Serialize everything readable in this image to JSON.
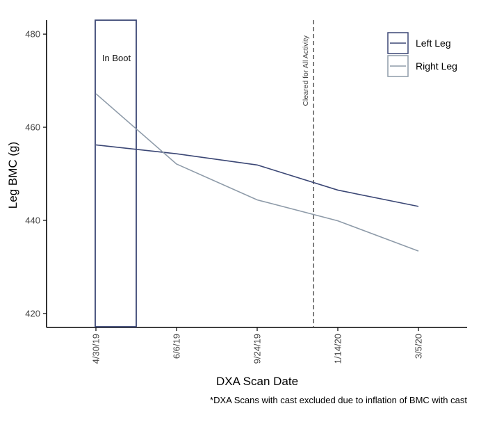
{
  "chart_data": {
    "type": "line",
    "xlabel": "DXA Scan Date",
    "ylabel": "Leg BMC (g)",
    "categories": [
      "4/30/19",
      "6/6/19",
      "9/24/19",
      "1/14/20",
      "3/5/20"
    ],
    "ylim": [
      417,
      483
    ],
    "yticks": [
      420,
      440,
      460,
      480
    ],
    "grid": false,
    "legend_position": "top-right",
    "series": [
      {
        "name": "Left Leg",
        "color": "#3b4775",
        "values": [
          456.2,
          454.3,
          451.9,
          446.5,
          443.0
        ]
      },
      {
        "name": "Right Leg",
        "color": "#8e9ba9",
        "values": [
          467.2,
          452.1,
          444.4,
          439.9,
          433.4
        ]
      }
    ],
    "annotations": {
      "boot_box": {
        "label": "In Boot",
        "x_start": 0,
        "x_end": 0.5,
        "color": "#3b4775"
      },
      "cleared_line": {
        "label": "Cleared for All Activity",
        "x": 2.7,
        "color": "#555555"
      }
    },
    "footnote": "*DXA Scans with cast excluded due to inflation of BMC with cast"
  }
}
